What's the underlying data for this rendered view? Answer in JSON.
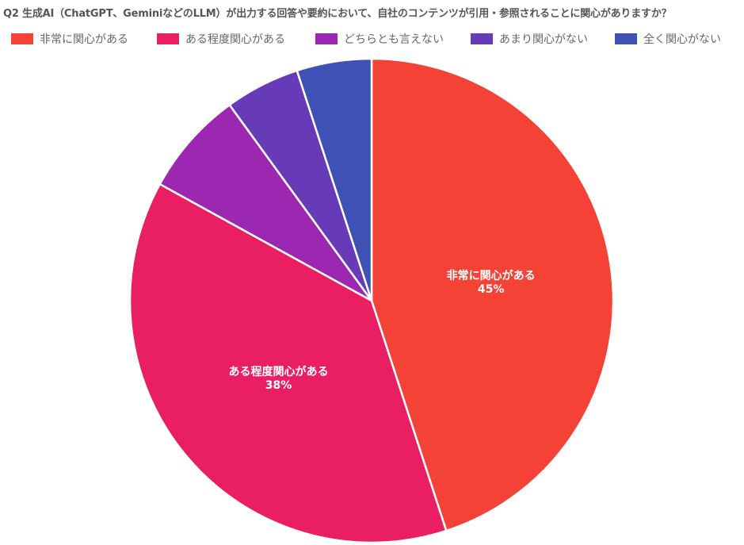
{
  "chart_data": {
    "type": "pie",
    "title": "Q2 生成AI（ChatGPT、GeminiなどのLLM）が出力する回答や要約において、自社のコンテンツが引用・参照されることに関心がありますか？",
    "legend_position": "top",
    "slices": [
      {
        "label": "非常に関心がある",
        "value": 45,
        "display": "45%",
        "color": "#f44336",
        "show_label": true
      },
      {
        "label": "ある程度関心がある",
        "value": 38,
        "display": "38%",
        "color": "#e91e63",
        "show_label": true
      },
      {
        "label": "どちらとも言えない",
        "value": 7,
        "display": "7%",
        "color": "#9c27b0",
        "show_label": false
      },
      {
        "label": "あまり関心がない",
        "value": 5,
        "display": "5%",
        "color": "#673ab7",
        "show_label": false
      },
      {
        "label": "全く関心がない",
        "value": 5,
        "display": "5%",
        "color": "#3f51b5",
        "show_label": false
      }
    ]
  }
}
